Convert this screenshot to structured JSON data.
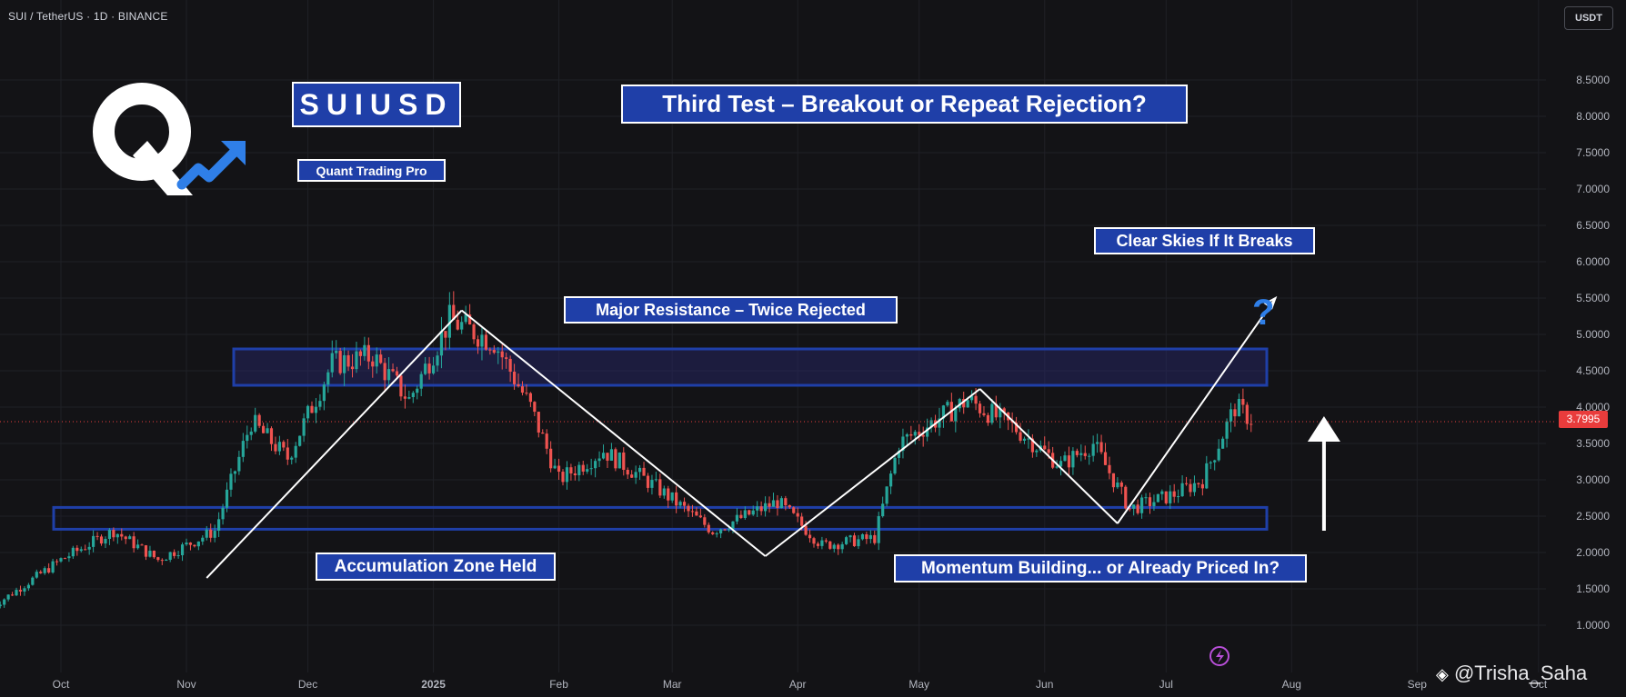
{
  "header": {
    "symbol_line": "SUI / TetherUS · 1D · BINANCE",
    "currency_button": "USDT"
  },
  "annotations": {
    "ticker_box": "SUIUSD",
    "brand_box": "Quant Trading Pro",
    "headline": "Third Test – Breakout or Repeat Rejection?",
    "resistance_label": "Major Resistance – Twice Rejected",
    "target_label": "Clear Skies If It Breaks",
    "support_label": "Accumulation Zone Held",
    "momentum_label": "Momentum Building... or Already Priced In?",
    "question_mark": "?"
  },
  "watermark": "@Trisha_Saha",
  "colors": {
    "background": "#131316",
    "bull": "#26a69a",
    "bear": "#ef5350",
    "zone": "#1f3fa8",
    "label_bg": "#1f3fa8",
    "accent_blue": "#2f7fe8",
    "last_price": "#e93c3c"
  },
  "chart_data": {
    "type": "candlestick",
    "title": "",
    "x_axis_ticks": [
      "Oct",
      "Nov",
      "Dec",
      "2025",
      "Feb",
      "Mar",
      "Apr",
      "May",
      "Jun",
      "Jul",
      "Aug",
      "Sep",
      "Oct"
    ],
    "y_axis_ticks": [
      "1.0000",
      "1.5000",
      "2.0000",
      "2.5000",
      "3.0000",
      "3.5000",
      "4.0000",
      "4.5000",
      "5.0000",
      "5.5000",
      "6.0000",
      "6.5000",
      "7.0000",
      "7.5000",
      "8.0000",
      "8.5000"
    ],
    "ylim": [
      0.85,
      8.85
    ],
    "last_price": "3.7995",
    "last_price_value": 3.7995,
    "price_path": [
      {
        "date": "2024-09-14",
        "close": 1.25
      },
      {
        "date": "2024-10-01",
        "close": 1.9
      },
      {
        "date": "2024-10-14",
        "close": 2.3
      },
      {
        "date": "2024-10-25",
        "close": 1.9
      },
      {
        "date": "2024-11-08",
        "close": 2.3
      },
      {
        "date": "2024-11-17",
        "close": 3.8
      },
      {
        "date": "2024-11-26",
        "close": 3.3
      },
      {
        "date": "2024-12-07",
        "close": 4.6
      },
      {
        "date": "2024-12-17",
        "close": 4.7
      },
      {
        "date": "2024-12-26",
        "close": 4.1
      },
      {
        "date": "2025-01-05",
        "close": 5.2
      },
      {
        "date": "2025-01-16",
        "close": 4.9
      },
      {
        "date": "2025-01-25",
        "close": 4.0
      },
      {
        "date": "2025-02-01",
        "close": 3.0
      },
      {
        "date": "2025-02-12",
        "close": 3.4
      },
      {
        "date": "2025-02-25",
        "close": 2.9
      },
      {
        "date": "2025-03-11",
        "close": 2.3
      },
      {
        "date": "2025-03-27",
        "close": 2.7
      },
      {
        "date": "2025-04-07",
        "close": 2.1
      },
      {
        "date": "2025-04-20",
        "close": 2.2
      },
      {
        "date": "2025-04-26",
        "close": 3.5
      },
      {
        "date": "2025-05-13",
        "close": 4.1
      },
      {
        "date": "2025-05-25",
        "close": 3.7
      },
      {
        "date": "2025-06-05",
        "close": 3.2
      },
      {
        "date": "2025-06-13",
        "close": 3.5
      },
      {
        "date": "2025-06-22",
        "close": 2.6
      },
      {
        "date": "2025-07-03",
        "close": 2.8
      },
      {
        "date": "2025-07-10",
        "close": 3.0
      },
      {
        "date": "2025-07-18",
        "close": 4.0
      },
      {
        "date": "2025-07-23",
        "close": 3.8
      }
    ],
    "zones": [
      {
        "label": "resistance",
        "low": 4.3,
        "high": 4.8
      },
      {
        "label": "support",
        "low": 2.32,
        "high": 2.62
      }
    ],
    "trend_lines": [
      {
        "from": {
          "date": "2024-11-06",
          "price": 1.65
        },
        "to": {
          "date": "2025-01-08",
          "price": 5.33
        }
      },
      {
        "from": {
          "date": "2025-01-08",
          "price": 5.33
        },
        "to": {
          "date": "2025-03-24",
          "price": 1.95
        }
      },
      {
        "from": {
          "date": "2025-03-24",
          "price": 1.95
        },
        "to": {
          "date": "2025-05-16",
          "price": 4.25
        }
      },
      {
        "from": {
          "date": "2025-05-16",
          "price": 4.25
        },
        "to": {
          "date": "2025-06-19",
          "price": 2.4
        }
      },
      {
        "from": {
          "date": "2025-06-19",
          "price": 2.4
        },
        "to": {
          "date": "2025-07-28",
          "price": 5.5
        }
      },
      {
        "from": {
          "date": "2025-08-09",
          "price": 2.3
        },
        "to": {
          "date": "2025-08-09",
          "price": 3.65
        }
      }
    ]
  }
}
